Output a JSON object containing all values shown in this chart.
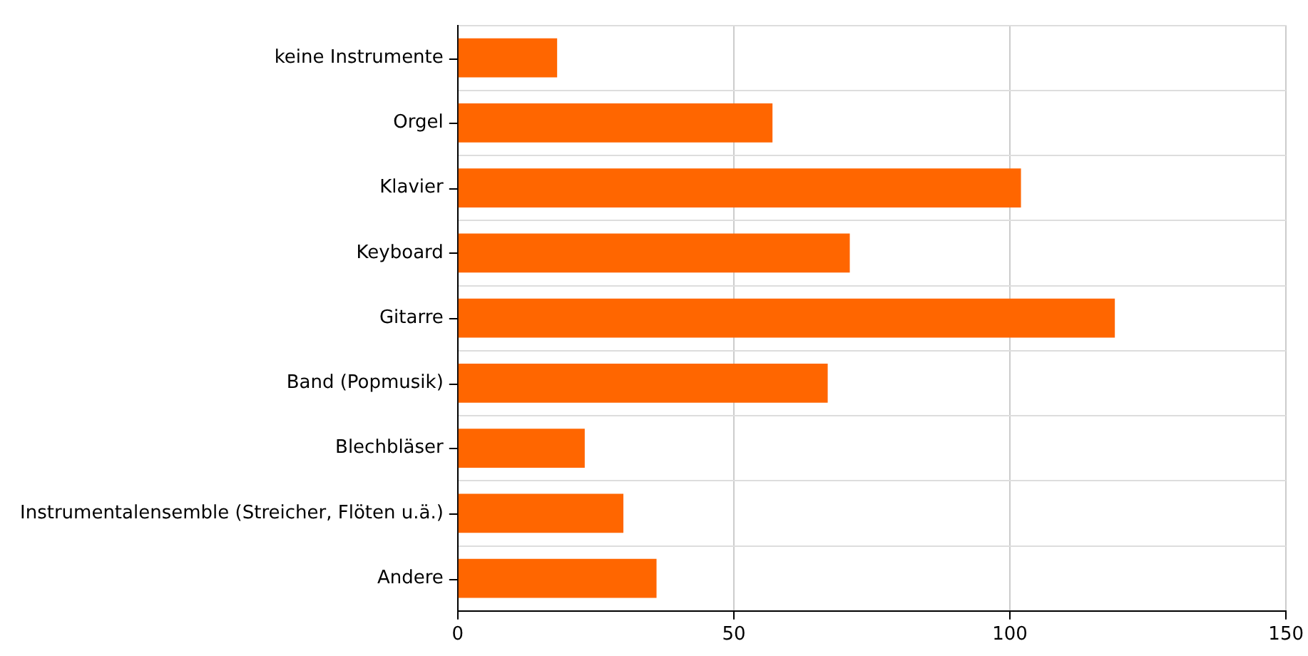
{
  "chart_data": {
    "type": "bar",
    "orientation": "horizontal",
    "categories": [
      "keine Instrumente",
      "Orgel",
      "Klavier",
      "Keyboard",
      "Gitarre",
      "Band (Popmusik)",
      "Blechbläser",
      "Instrumentalensemble (Streicher, Flöten u.ä.)",
      "Andere"
    ],
    "values": [
      18,
      57,
      102,
      71,
      119,
      67,
      23,
      30,
      36
    ],
    "color": "#ff6600",
    "xlim": [
      0,
      150
    ],
    "xticks": [
      0,
      50,
      100,
      150
    ],
    "grid": true,
    "legend": false
  }
}
